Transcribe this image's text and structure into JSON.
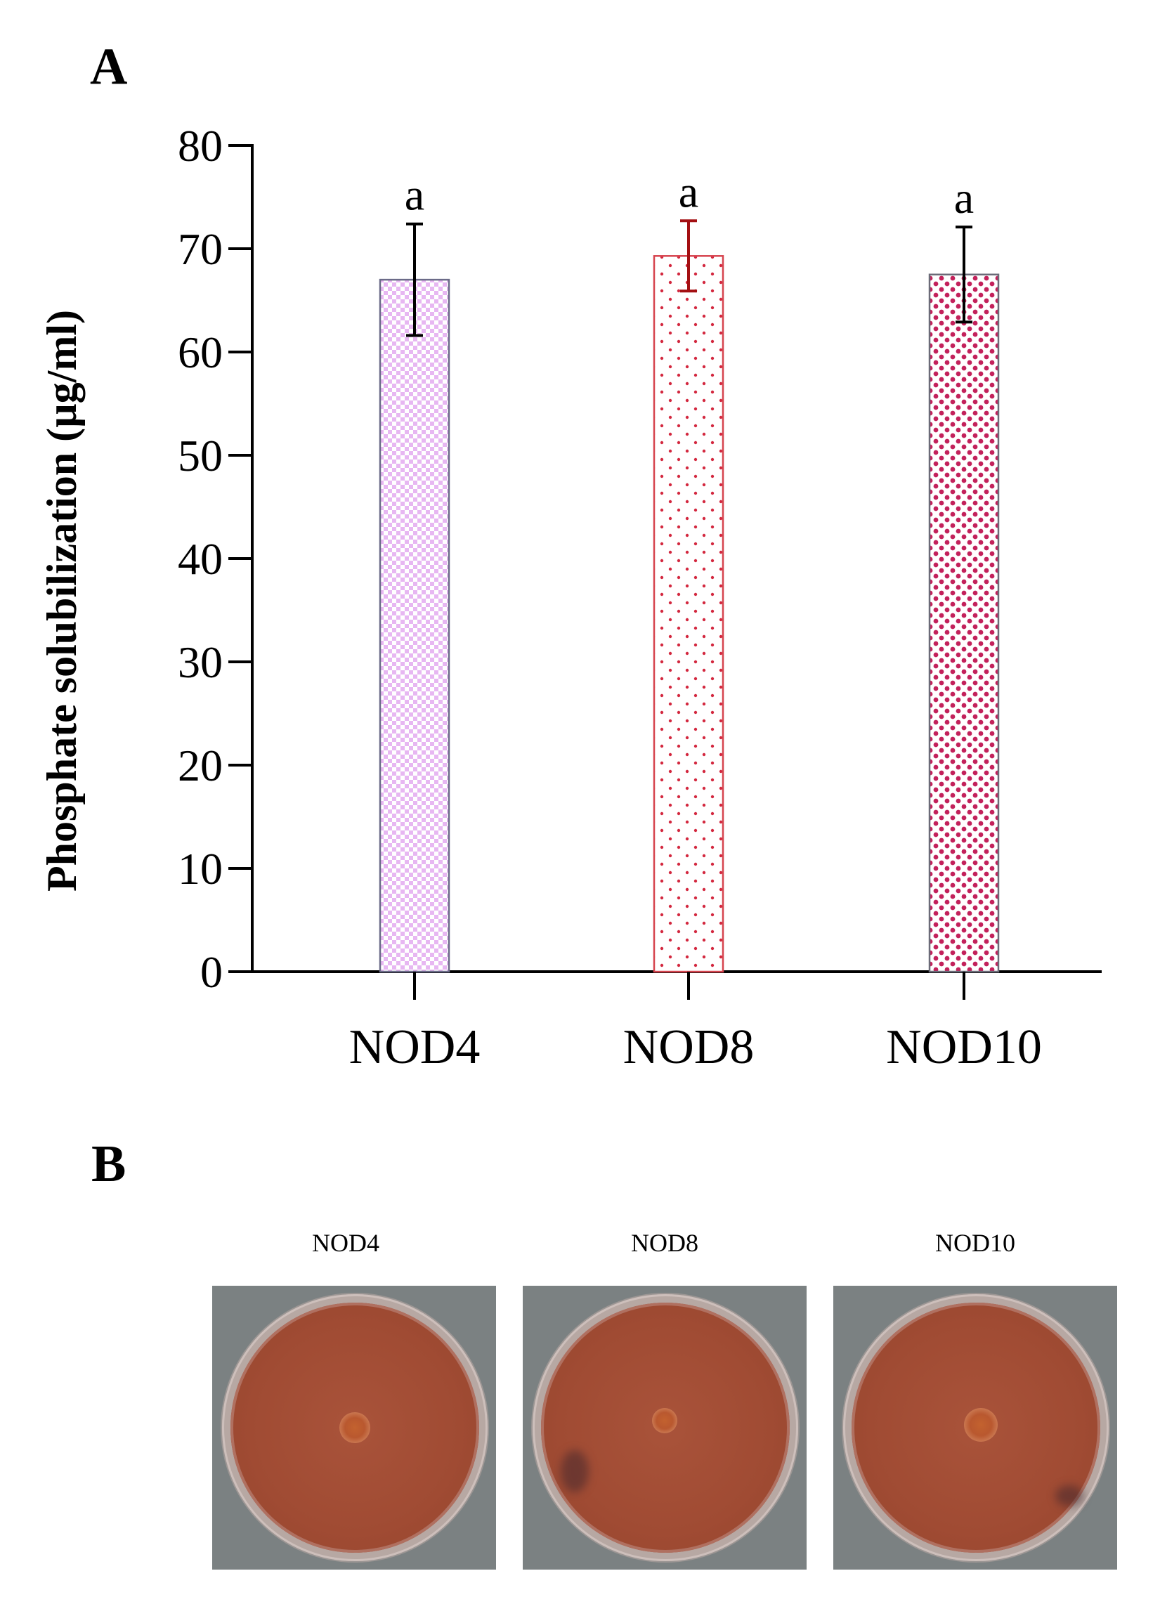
{
  "panel_labels": {
    "a": "A",
    "b": "B"
  },
  "chart_data": {
    "type": "bar",
    "title": "",
    "xlabel": "",
    "ylabel": "Phosphate solubilization (µg/ml)",
    "ylim": [
      0,
      80
    ],
    "yticks": [
      0,
      10,
      20,
      30,
      40,
      50,
      60,
      70,
      80
    ],
    "categories": [
      "NOD4",
      "NOD8",
      "NOD10"
    ],
    "values": [
      67.0,
      69.3,
      67.5
    ],
    "errors": [
      5.4,
      3.4,
      4.6
    ],
    "significance_letters": [
      "a",
      "a",
      "a"
    ],
    "bar_colors": {
      "NOD4": {
        "fill": "#e7b7f2",
        "pattern": "checker",
        "edge": "#6b6b88",
        "error_bar": "#000000"
      },
      "NOD8": {
        "fill": "#d3283f",
        "pattern": "sparse-dots",
        "edge": "#d6454f",
        "error_bar": "#a30f12"
      },
      "NOD10": {
        "fill": "#c3215b",
        "pattern": "dense-dots",
        "edge": "#6b6b78",
        "error_bar": "#000000"
      }
    },
    "grid": false,
    "legend": "none"
  },
  "plates": [
    {
      "label": "NOD4"
    },
    {
      "label": "NOD8"
    },
    {
      "label": "NOD10"
    }
  ]
}
